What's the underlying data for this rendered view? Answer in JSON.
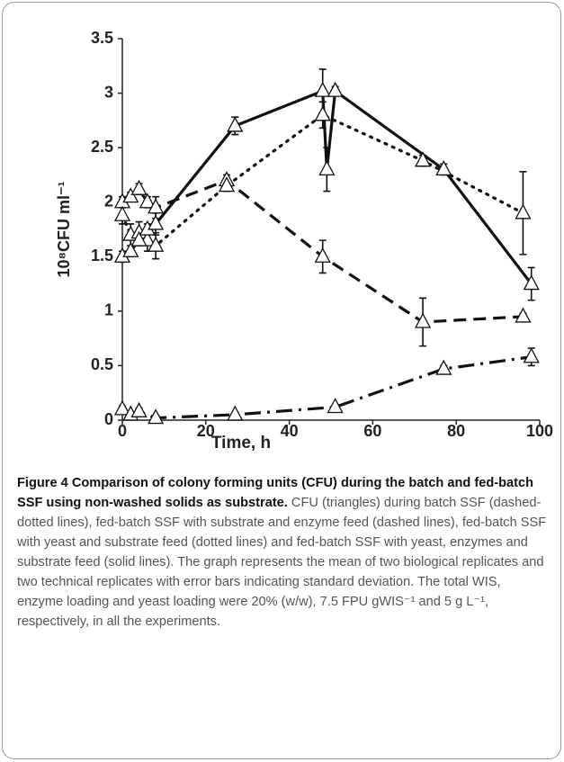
{
  "chart_data": {
    "type": "line",
    "ylabel": "10⁸CFU ml⁻¹",
    "xlabel": "Time, h",
    "xlim": [
      0,
      100
    ],
    "xticks": [
      0,
      20,
      40,
      60,
      80,
      100
    ],
    "ylim": [
      0,
      3.5
    ],
    "yticks": [
      0,
      0.5,
      1,
      1.5,
      2,
      2.5,
      3,
      3.5
    ],
    "series": [
      {
        "color": "#111111",
        "line_style": "dashdot",
        "x": [
          0,
          2,
          4,
          8,
          27,
          51,
          77,
          98
        ],
        "values": [
          0.1,
          0.05,
          0.08,
          0.02,
          0.05,
          0.12,
          0.47,
          0.58
        ],
        "errors": [
          0.03,
          0.02,
          0.03,
          0.02,
          0.02,
          0.02,
          0.03,
          0.08
        ]
      },
      {
        "color": "#111111",
        "line_style": "dash",
        "x": [
          0,
          2,
          4,
          6,
          8,
          25,
          48,
          72,
          96
        ],
        "values": [
          2.0,
          2.05,
          2.12,
          2.0,
          1.95,
          2.2,
          1.5,
          0.9,
          0.95
        ],
        "errors": [
          0.05,
          0.04,
          0.05,
          0.05,
          0.1,
          0.05,
          0.15,
          0.22,
          0.03
        ]
      },
      {
        "color": "#111111",
        "line_style": "dot",
        "x": [
          0,
          2,
          4,
          6,
          8,
          25,
          48,
          72,
          96
        ],
        "values": [
          1.88,
          1.7,
          1.72,
          1.65,
          1.6,
          2.15,
          2.8,
          2.38,
          1.9
        ],
        "errors": [
          0.08,
          0.1,
          0.1,
          0.1,
          0.12,
          0.05,
          0.12,
          0.05,
          0.38
        ]
      },
      {
        "color": "#111111",
        "line_style": "solid",
        "x": [
          0,
          2,
          4,
          6,
          8,
          27,
          48,
          49,
          51,
          77,
          98
        ],
        "values": [
          1.5,
          1.55,
          1.65,
          1.75,
          1.8,
          2.7,
          3.02,
          2.3,
          3.02,
          2.3,
          1.25
        ],
        "errors": [
          0.05,
          0.05,
          0.05,
          0.05,
          0.1,
          0.08,
          0.2,
          0.2,
          0.04,
          0.05,
          0.15
        ]
      }
    ]
  },
  "caption": {
    "title": "Figure 4 Comparison of colony forming units (CFU) during the batch and fed-batch SSF using non-washed solids as substrate.",
    "body": "CFU (triangles) during batch SSF (dashed-dotted lines), fed-batch SSF with substrate and enzyme feed (dashed lines), fed-batch SSF with yeast and substrate feed (dotted lines) and fed-batch SSF with yeast, enzymes and substrate feed (solid lines). The graph represents the mean of two biological replicates and two technical replicates with error bars indicating standard deviation. The total WIS, enzyme loading and yeast loading were 20% (w/w), 7.5 FPU gWIS⁻¹ and 5 g L⁻¹, respectively, in all the experiments."
  }
}
